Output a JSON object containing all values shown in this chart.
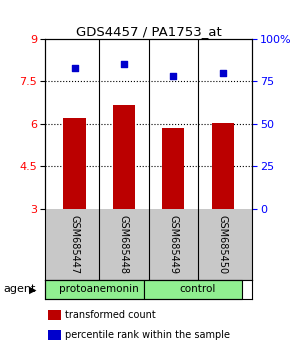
{
  "title": "GDS4457 / PA1753_at",
  "samples": [
    "GSM685447",
    "GSM685448",
    "GSM685449",
    "GSM685450"
  ],
  "bar_values": [
    6.2,
    6.65,
    5.85,
    6.02
  ],
  "percentile_values": [
    83,
    85.5,
    78,
    80
  ],
  "bar_color": "#bb0000",
  "percentile_color": "#0000cc",
  "ylim_left": [
    3,
    9
  ],
  "ylim_right": [
    0,
    100
  ],
  "yticks_left": [
    3,
    4.5,
    6,
    7.5,
    9
  ],
  "yticks_right": [
    0,
    25,
    50,
    75,
    100
  ],
  "ytick_labels_left": [
    "3",
    "4.5",
    "6",
    "7.5",
    "9"
  ],
  "ytick_labels_right": [
    "0",
    "25",
    "50",
    "75",
    "100%"
  ],
  "groups": [
    {
      "label": "protoanemonin",
      "span": [
        0,
        1
      ],
      "color": "#90ee90"
    },
    {
      "label": "control",
      "span": [
        2,
        3
      ],
      "color": "#90ee90"
    }
  ],
  "legend_items": [
    {
      "label": "transformed count",
      "color": "#bb0000"
    },
    {
      "label": "percentile rank within the sample",
      "color": "#0000cc"
    }
  ],
  "bar_width": 0.45,
  "background_color": "#ffffff",
  "sample_box_color": "#c8c8c8"
}
